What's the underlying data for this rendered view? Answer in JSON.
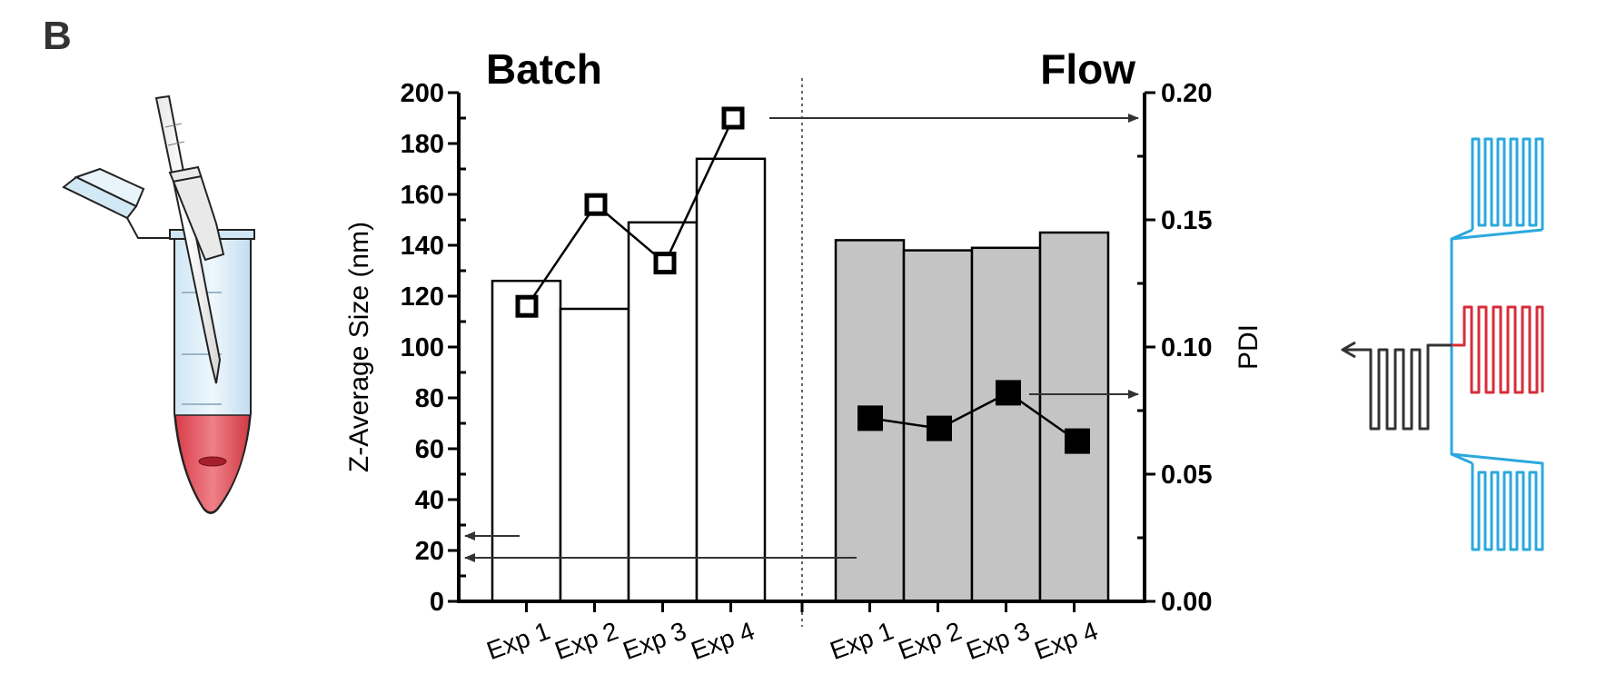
{
  "panel_label": "B",
  "chart_data": {
    "type": "bar",
    "ylabel": "Z-Average Size (nm)",
    "y2label": "PDI",
    "ylim": [
      0,
      200
    ],
    "y2lim": [
      0,
      0.2
    ],
    "yticks": [
      "0",
      "20",
      "40",
      "60",
      "80",
      "100",
      "120",
      "140",
      "160",
      "180",
      "200"
    ],
    "y2ticks": [
      "0.00",
      "0.05",
      "0.10",
      "0.15",
      "0.20"
    ],
    "groups": [
      {
        "name": "Batch",
        "categories": [
          "Exp 1",
          "Exp 2",
          "Exp 3",
          "Exp 4"
        ],
        "size_nm": [
          126,
          115,
          149,
          174
        ],
        "pdi": [
          0.116,
          0.156,
          0.133,
          0.19
        ],
        "bar_color": "#ffffff",
        "marker": "open-square"
      },
      {
        "name": "Flow",
        "categories": [
          "Exp 1",
          "Exp 2",
          "Exp 3",
          "Exp 4"
        ],
        "size_nm": [
          142,
          138,
          139,
          145
        ],
        "pdi": [
          0.072,
          0.068,
          0.082,
          0.063
        ],
        "bar_color": "#c4c4c4",
        "marker": "filled-square"
      }
    ],
    "colors": {
      "axis": "#000000",
      "flow_bar": "#c4c4c4",
      "arrow": "#333333",
      "tube_red": "#d6404a",
      "chip_blue": "#2ba8dd",
      "chip_red": "#d62e3a",
      "chip_dark": "#333333"
    }
  }
}
